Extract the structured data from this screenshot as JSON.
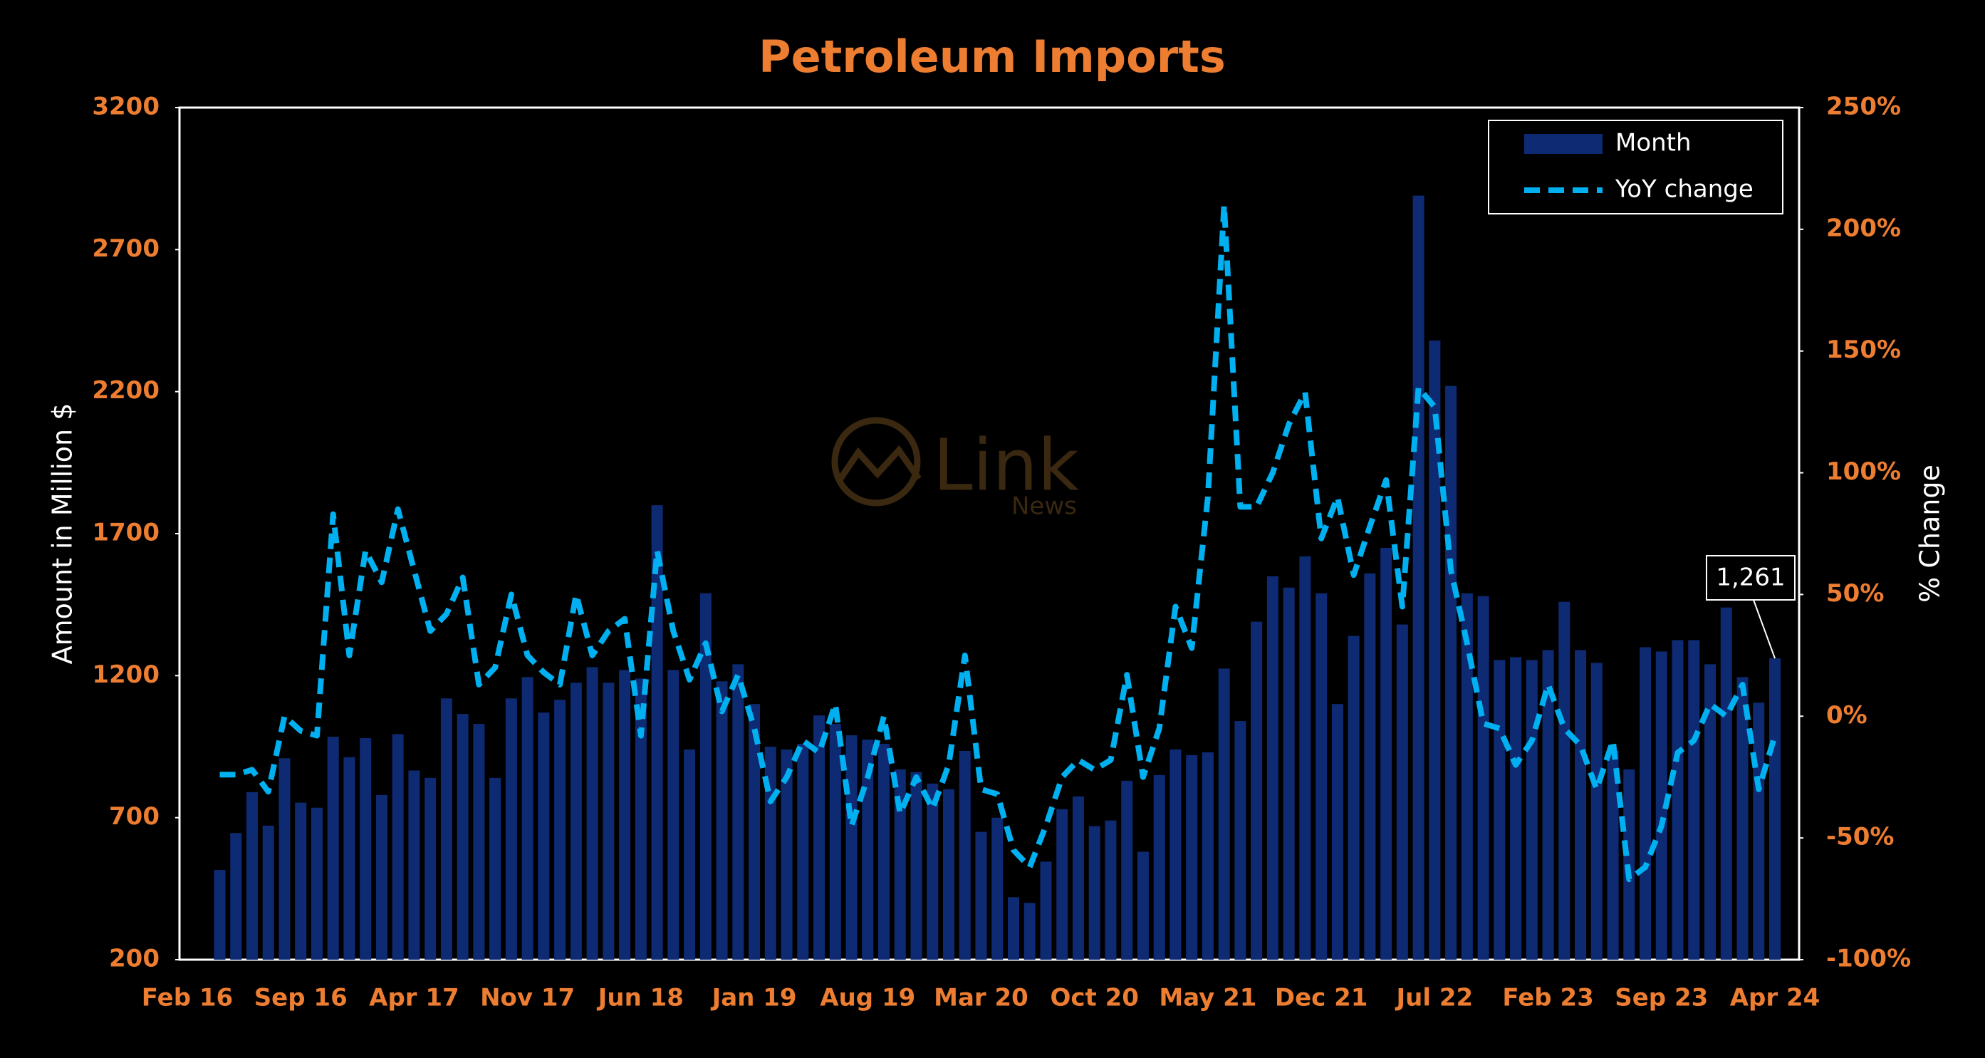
{
  "chart_data": {
    "type": "bar",
    "title": "Petroleum Imports",
    "ylabel": "Amount in Million $",
    "y2label": "% Change",
    "watermark": "Link",
    "watermark_subtitle": "News",
    "categories": [
      "Feb 16",
      null,
      null,
      null,
      null,
      null,
      null,
      "Sep 16",
      null,
      null,
      null,
      null,
      null,
      null,
      "Apr 17",
      null,
      null,
      null,
      null,
      null,
      null,
      "Nov 17",
      null,
      null,
      null,
      null,
      null,
      null,
      "Jun 18",
      null,
      null,
      null,
      null,
      null,
      null,
      "Jan 19",
      null,
      null,
      null,
      null,
      null,
      null,
      "Aug 19",
      null,
      null,
      null,
      null,
      null,
      null,
      "Mar 20",
      null,
      null,
      null,
      null,
      null,
      null,
      "Oct 20",
      null,
      null,
      null,
      null,
      null,
      null,
      "May 21",
      null,
      null,
      null,
      null,
      null,
      null,
      "Dec 21",
      null,
      null,
      null,
      null,
      null,
      null,
      "Jul 22",
      null,
      null,
      null,
      null,
      null,
      null,
      "Feb 23",
      null,
      null,
      null,
      null,
      null,
      null,
      "Sep 23",
      null,
      null,
      null,
      null,
      null,
      null,
      "Apr 24"
    ],
    "series": [
      {
        "name": "Month",
        "type": "bar",
        "color": "#0e2a72",
        "values": [
          null,
          null,
          516,
          646,
          790,
          672,
          909,
          753,
          735,
          985,
          913,
          980,
          780,
          994,
          866,
          840,
          1120,
          1065,
          1030,
          840,
          1120,
          1195,
          1070,
          1115,
          1175,
          1230,
          1175,
          1220,
          1190,
          1800,
          1220,
          940,
          1490,
          1180,
          1240,
          1100,
          950,
          940,
          960,
          1060,
          1030,
          990,
          975,
          960,
          870,
          860,
          820,
          800,
          935,
          650,
          700,
          420,
          400,
          545,
          730,
          775,
          670,
          690,
          830,
          580,
          850,
          940,
          920,
          930,
          1225,
          1040,
          1390,
          1550,
          1510,
          1620,
          1490,
          1100,
          1340,
          1560,
          1650,
          1380,
          2890,
          2380,
          2220,
          1490,
          1480,
          1255,
          1265,
          1255,
          1290,
          1460,
          1290,
          1245,
          935,
          870,
          1300,
          1285,
          1325,
          1325,
          1240,
          1440,
          1195,
          1105,
          1261
        ],
        "value_labels": [
          null,
          null,
          null,
          null,
          null,
          null,
          null,
          null,
          null,
          null,
          null,
          null,
          null,
          null,
          null,
          null,
          null,
          null,
          null,
          null,
          null,
          null,
          null,
          null,
          null,
          null,
          null,
          null,
          null,
          null,
          null,
          null,
          null,
          null,
          null,
          null,
          null,
          null,
          null,
          null,
          null,
          null,
          null,
          null,
          null,
          null,
          null,
          null,
          null,
          null,
          null,
          null,
          null,
          null,
          null,
          null,
          null,
          null,
          null,
          null,
          null,
          null,
          null,
          null,
          null,
          null,
          null,
          null,
          null,
          null,
          null,
          null,
          null,
          null,
          null,
          null,
          null,
          null,
          null,
          null,
          null,
          null,
          null,
          null,
          null,
          null,
          null,
          null,
          null,
          null,
          null,
          null,
          null,
          null,
          null,
          null,
          null,
          null,
          "1,261"
        ]
      },
      {
        "name": "YoY change",
        "type": "line",
        "axis": "y2",
        "color": "#00b0f0",
        "line_style": "dashed",
        "values": [
          null,
          null,
          -24,
          -24,
          -22,
          -31,
          0,
          -6,
          -8,
          83,
          25,
          68,
          55,
          85,
          60,
          35,
          42,
          57,
          13,
          20,
          50,
          25,
          18,
          13,
          50,
          25,
          35,
          40,
          -8,
          68,
          35,
          15,
          30,
          2,
          17,
          -5,
          -35,
          -25,
          -10,
          -15,
          5,
          -45,
          -25,
          0,
          -40,
          -25,
          -38,
          -20,
          25,
          -30,
          -32,
          -55,
          -62,
          -45,
          -25,
          -18,
          -22,
          -18,
          17,
          -25,
          -5,
          45,
          28,
          90,
          210,
          86,
          86,
          100,
          120,
          133,
          73,
          90,
          58,
          78,
          97,
          45,
          135,
          127,
          60,
          30,
          -3,
          -5,
          -20,
          -10,
          13,
          -5,
          -12,
          -30,
          -10,
          -67,
          -62,
          -45,
          -15,
          -10,
          5,
          0,
          13,
          -30,
          -8
        ]
      }
    ],
    "ylim": [
      200,
      3200
    ],
    "yticks": [
      200,
      700,
      1200,
      1700,
      2200,
      2700,
      3200
    ],
    "y2lim": [
      -100,
      250
    ],
    "y2ticks": [
      {
        "value": -100,
        "label": "-100%"
      },
      {
        "value": -50,
        "label": "-50%"
      },
      {
        "value": 0,
        "label": "0%"
      },
      {
        "value": 50,
        "label": "50%"
      },
      {
        "value": 100,
        "label": "100%"
      },
      {
        "value": 150,
        "label": "150%"
      },
      {
        "value": 200,
        "label": "200%"
      },
      {
        "value": 250,
        "label": "250%"
      }
    ],
    "grid": false,
    "legend": "upper right"
  }
}
